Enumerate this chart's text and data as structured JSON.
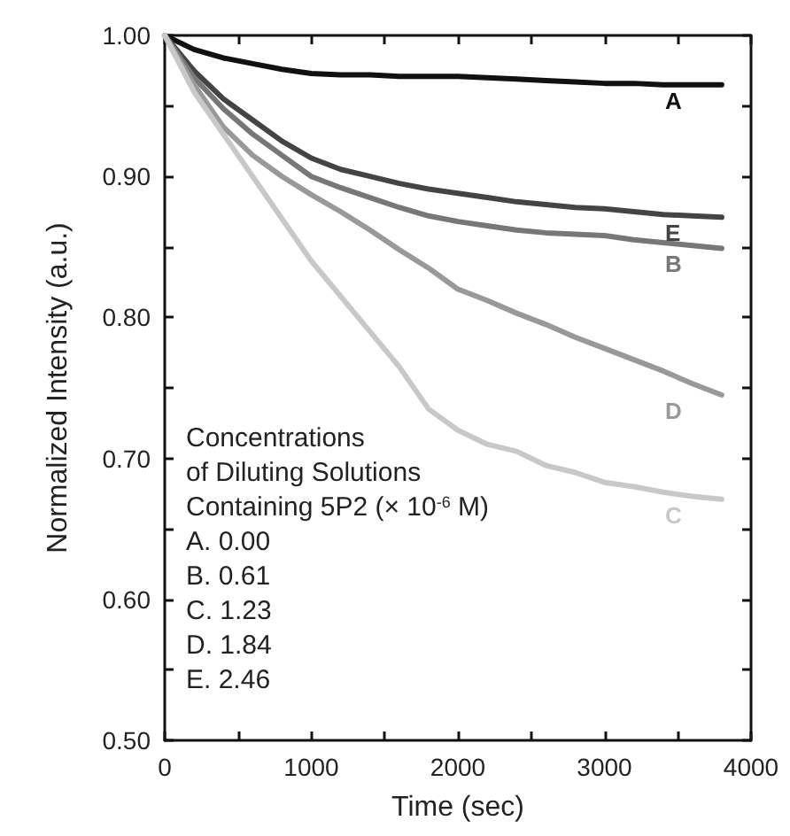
{
  "chart_data": {
    "type": "line",
    "xlabel": "Time (sec)",
    "ylabel": "Normalized Intensity (a.u.)",
    "x": [
      0,
      200,
      400,
      600,
      800,
      1000,
      1200,
      1400,
      1600,
      1800,
      2000,
      2200,
      2400,
      2600,
      2800,
      3000,
      3200,
      3400,
      3600,
      3800
    ],
    "series": [
      {
        "name": "A",
        "color": "#111111",
        "values": [
          1.0,
          0.99,
          0.984,
          0.98,
          0.976,
          0.973,
          0.972,
          0.972,
          0.971,
          0.971,
          0.971,
          0.97,
          0.969,
          0.968,
          0.967,
          0.966,
          0.966,
          0.965,
          0.965,
          0.965
        ]
      },
      {
        "name": "E",
        "color": "#444444",
        "values": [
          1.0,
          0.975,
          0.955,
          0.94,
          0.925,
          0.913,
          0.905,
          0.9,
          0.895,
          0.891,
          0.888,
          0.885,
          0.882,
          0.88,
          0.878,
          0.877,
          0.875,
          0.873,
          0.872,
          0.871
        ]
      },
      {
        "name": "B",
        "color": "#777777",
        "values": [
          1.0,
          0.97,
          0.948,
          0.93,
          0.915,
          0.9,
          0.892,
          0.885,
          0.878,
          0.872,
          0.868,
          0.865,
          0.862,
          0.86,
          0.859,
          0.858,
          0.855,
          0.853,
          0.851,
          0.849
        ]
      },
      {
        "name": "D",
        "color": "#999999",
        "values": [
          1.0,
          0.965,
          0.935,
          0.915,
          0.9,
          0.887,
          0.875,
          0.862,
          0.848,
          0.835,
          0.82,
          0.812,
          0.803,
          0.795,
          0.786,
          0.778,
          0.77,
          0.762,
          0.753,
          0.745
        ]
      },
      {
        "name": "C",
        "color": "#c8c8c8",
        "values": [
          1.0,
          0.96,
          0.93,
          0.9,
          0.87,
          0.84,
          0.815,
          0.79,
          0.765,
          0.735,
          0.72,
          0.71,
          0.705,
          0.695,
          0.69,
          0.683,
          0.68,
          0.676,
          0.673,
          0.671
        ]
      }
    ],
    "xlim": [
      0,
      4000
    ],
    "xticks": [
      0,
      {
        "value": 500,
        "label": null
      },
      1000,
      {
        "value": 1500,
        "label": null
      },
      2000,
      {
        "value": 2500,
        "label": null
      },
      3000,
      {
        "value": 3500,
        "label": null
      },
      4000
    ],
    "ylim": [
      0.5,
      1.0
    ],
    "yticks": [
      {
        "value": 0.5,
        "label": "0.50"
      },
      {
        "value": 0.55,
        "label": null
      },
      {
        "value": 0.6,
        "label": "0.60"
      },
      {
        "value": 0.65,
        "label": null
      },
      {
        "value": 0.7,
        "label": "0.70"
      },
      {
        "value": 0.75,
        "label": null
      },
      {
        "value": 0.8,
        "label": "0.80"
      },
      {
        "value": 0.85,
        "label": null
      },
      {
        "value": 0.9,
        "label": "0.90"
      },
      {
        "value": 0.95,
        "label": null
      },
      {
        "value": 1.0,
        "label": "1.00"
      }
    ],
    "annotations": [
      "Concentrations",
      "of Diluting Solutions",
      "Containing 5P2 (× 10$^{-6}$ M)",
      "A. 0.00",
      "B. 0.61",
      "C. 1.23",
      "D. 1.84",
      "E. 2.46"
    ],
    "grid": false,
    "legend": false,
    "marker": "none",
    "line_style": "solid"
  }
}
